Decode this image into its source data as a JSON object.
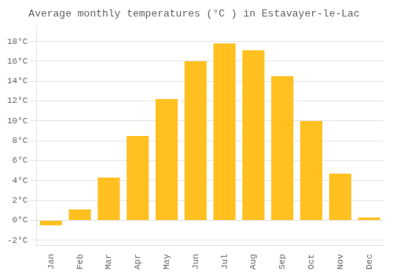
{
  "chart_data": {
    "type": "bar",
    "title": "Average monthly temperatures (°C ) in Estavayer-le-Lac",
    "categories": [
      "Jan",
      "Feb",
      "Mar",
      "Apr",
      "May",
      "Jun",
      "Jul",
      "Aug",
      "Sep",
      "Oct",
      "Nov",
      "Dec"
    ],
    "values": [
      -0.5,
      1.1,
      4.3,
      8.5,
      12.2,
      16.0,
      17.8,
      17.1,
      14.5,
      10.0,
      4.7,
      0.3
    ],
    "color": "#FFC020",
    "ylim": [
      -2.5,
      19.5
    ],
    "yticks": [
      {
        "value": -2,
        "label": "-2°C"
      },
      {
        "value": 0,
        "label": "0°C"
      },
      {
        "value": 2,
        "label": "2°C"
      },
      {
        "value": 4,
        "label": "4°C"
      },
      {
        "value": 6,
        "label": "6°C"
      },
      {
        "value": 8,
        "label": "8°C"
      },
      {
        "value": 10,
        "label": "10°C"
      },
      {
        "value": 12,
        "label": "12°C"
      },
      {
        "value": 14,
        "label": "14°C"
      },
      {
        "value": 16,
        "label": "16°C"
      },
      {
        "value": 18,
        "label": "18°C"
      }
    ],
    "grid": true
  }
}
